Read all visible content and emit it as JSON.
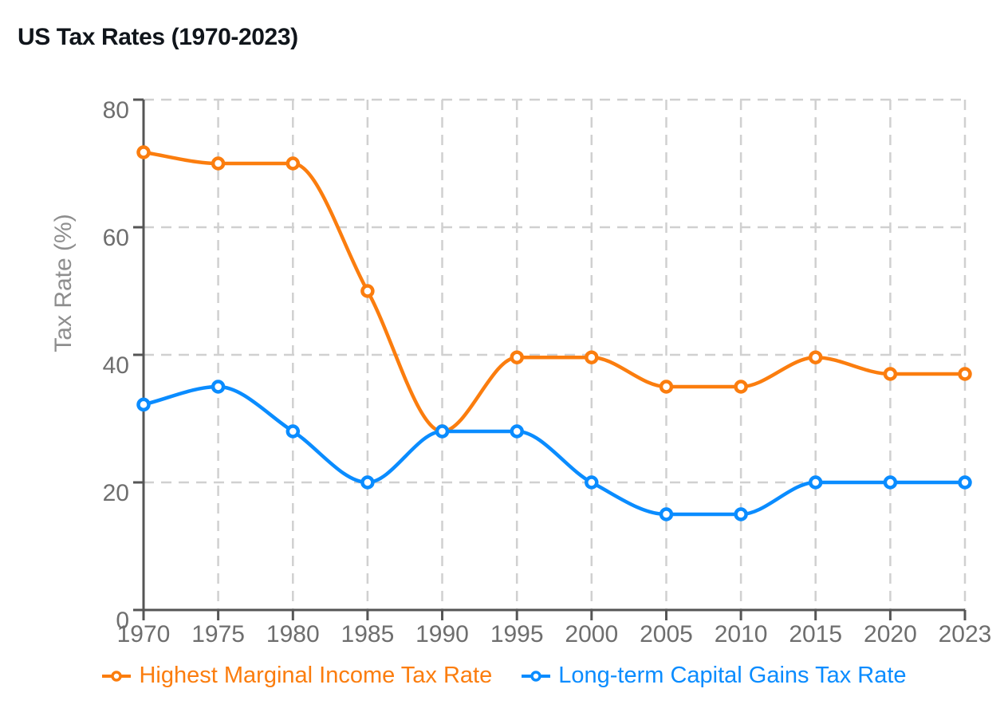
{
  "chart_data": {
    "type": "line",
    "title": "US Tax Rates (1970-2023)",
    "xlabel": "",
    "ylabel": "Tax Rate (%)",
    "categories": [
      "1970",
      "1975",
      "1980",
      "1985",
      "1990",
      "1995",
      "2000",
      "2005",
      "2010",
      "2015",
      "2020",
      "2023"
    ],
    "series": [
      {
        "name": "Highest Marginal Income Tax Rate",
        "color": "#fb7d0e",
        "values": [
          71.75,
          70,
          70,
          50,
          28,
          39.6,
          39.6,
          35,
          35,
          39.6,
          37,
          37
        ]
      },
      {
        "name": "Long-term Capital Gains Tax Rate",
        "color": "#0a8cff",
        "values": [
          32.2,
          35,
          28,
          20,
          28,
          28,
          20,
          15,
          15,
          20,
          20,
          20
        ]
      }
    ],
    "ylim": [
      0,
      80
    ],
    "yticks": [
      0,
      20,
      40,
      60,
      80
    ],
    "grid": true,
    "grid_style": "dashed",
    "curve": "monotone",
    "legend_position": "bottom",
    "marker": "open-circle"
  }
}
